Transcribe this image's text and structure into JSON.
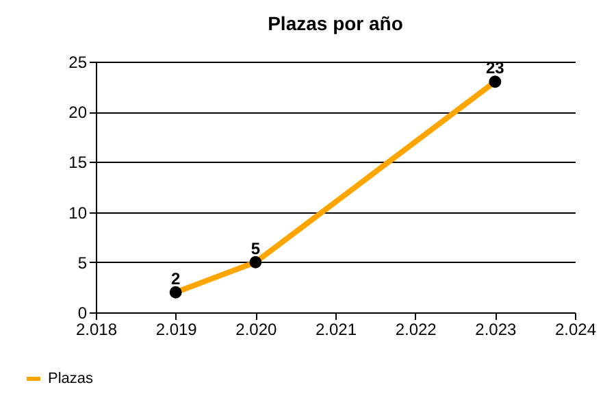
{
  "chart_data": {
    "type": "line",
    "title": "Plazas por año",
    "x": [
      2019,
      2020,
      2023
    ],
    "series": [
      {
        "name": "Plazas",
        "color": "#ffa500",
        "values": [
          2,
          5,
          23
        ]
      }
    ],
    "xlim": [
      2018,
      2024
    ],
    "xticks": [
      {
        "value": 2018,
        "label": "2.018"
      },
      {
        "value": 2019,
        "label": "2.019"
      },
      {
        "value": 2020,
        "label": "2.020"
      },
      {
        "value": 2021,
        "label": "2.021"
      },
      {
        "value": 2022,
        "label": "2.022"
      },
      {
        "value": 2023,
        "label": "2.023"
      },
      {
        "value": 2024,
        "label": "2.024"
      }
    ],
    "ylim": [
      0,
      25
    ],
    "yticks": [
      0,
      5,
      10,
      15,
      20,
      25
    ],
    "grid": "y",
    "legend": "bottom left",
    "marker": "circle",
    "line_style": "solid",
    "data_labels": true
  }
}
